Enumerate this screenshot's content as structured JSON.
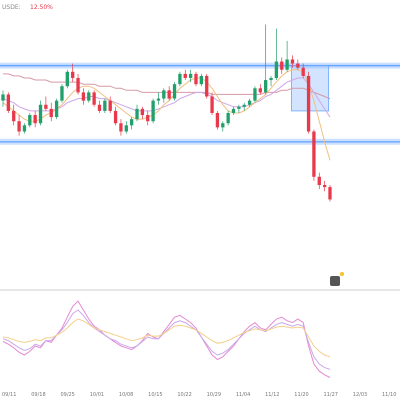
{
  "header": {
    "symbol_fragment": "USDE:",
    "change_text": "12.50%"
  },
  "colors": {
    "up": "#22a06b",
    "down": "#e8394a",
    "channel": "#6aa6ff",
    "box": "#9cc4ff",
    "ma_long": "#d59aa6",
    "ma_mid": "#cfa7e8",
    "ma_short": "#f0c080",
    "osc_1": "#e58ad1",
    "osc_2": "#c9a8ee",
    "osc_3": "#f3d08a",
    "tick_text": "#777777"
  },
  "chart_data": [
    {
      "type": "candlestick",
      "title": "",
      "x_tick_labels": [
        "09/11",
        "09/18",
        "09/25",
        "10/01",
        "10/08",
        "10/15",
        "10/22",
        "10/29",
        "11/04",
        "11/12",
        "11/20",
        "11/27",
        "12/03",
        "11/10"
      ],
      "candles": [
        {
          "o": 7.5,
          "h": 8.0,
          "l": 7.2,
          "c": 7.8
        },
        {
          "o": 7.8,
          "h": 7.9,
          "l": 6.9,
          "c": 7.0
        },
        {
          "o": 7.0,
          "h": 7.3,
          "l": 6.3,
          "c": 6.5
        },
        {
          "o": 6.5,
          "h": 6.8,
          "l": 5.8,
          "c": 6.0
        },
        {
          "o": 6.0,
          "h": 6.4,
          "l": 5.9,
          "c": 6.3
        },
        {
          "o": 6.3,
          "h": 6.9,
          "l": 6.2,
          "c": 6.8
        },
        {
          "o": 6.8,
          "h": 7.0,
          "l": 6.2,
          "c": 6.4
        },
        {
          "o": 6.4,
          "h": 7.5,
          "l": 6.3,
          "c": 7.3
        },
        {
          "o": 7.3,
          "h": 7.7,
          "l": 7.0,
          "c": 7.1
        },
        {
          "o": 7.1,
          "h": 7.4,
          "l": 6.5,
          "c": 6.7
        },
        {
          "o": 6.7,
          "h": 7.6,
          "l": 6.6,
          "c": 7.5
        },
        {
          "o": 7.5,
          "h": 8.3,
          "l": 7.4,
          "c": 8.2
        },
        {
          "o": 8.2,
          "h": 9.0,
          "l": 8.1,
          "c": 8.9
        },
        {
          "o": 8.9,
          "h": 9.3,
          "l": 8.4,
          "c": 8.6
        },
        {
          "o": 8.6,
          "h": 8.8,
          "l": 7.8,
          "c": 7.9
        },
        {
          "o": 7.9,
          "h": 8.1,
          "l": 7.3,
          "c": 7.5
        },
        {
          "o": 7.5,
          "h": 8.0,
          "l": 7.4,
          "c": 7.9
        },
        {
          "o": 7.9,
          "h": 8.0,
          "l": 7.2,
          "c": 7.3
        },
        {
          "o": 7.3,
          "h": 7.5,
          "l": 6.9,
          "c": 7.0
        },
        {
          "o": 7.0,
          "h": 7.6,
          "l": 6.9,
          "c": 7.5
        },
        {
          "o": 7.5,
          "h": 7.7,
          "l": 6.9,
          "c": 7.0
        },
        {
          "o": 7.0,
          "h": 7.2,
          "l": 6.3,
          "c": 6.4
        },
        {
          "o": 6.4,
          "h": 6.6,
          "l": 5.8,
          "c": 6.0
        },
        {
          "o": 6.0,
          "h": 6.5,
          "l": 5.9,
          "c": 6.3
        },
        {
          "o": 6.3,
          "h": 6.7,
          "l": 6.1,
          "c": 6.6
        },
        {
          "o": 6.6,
          "h": 7.3,
          "l": 6.5,
          "c": 7.1
        },
        {
          "o": 7.1,
          "h": 7.2,
          "l": 6.6,
          "c": 6.8
        },
        {
          "o": 6.8,
          "h": 7.0,
          "l": 6.3,
          "c": 6.5
        },
        {
          "o": 6.5,
          "h": 7.6,
          "l": 6.4,
          "c": 7.5
        },
        {
          "o": 7.5,
          "h": 7.9,
          "l": 7.3,
          "c": 7.6
        },
        {
          "o": 7.6,
          "h": 8.1,
          "l": 7.4,
          "c": 8.0
        },
        {
          "o": 8.0,
          "h": 8.2,
          "l": 7.5,
          "c": 7.6
        },
        {
          "o": 7.6,
          "h": 8.4,
          "l": 7.5,
          "c": 8.3
        },
        {
          "o": 8.3,
          "h": 8.9,
          "l": 8.2,
          "c": 8.8
        },
        {
          "o": 8.8,
          "h": 9.0,
          "l": 8.5,
          "c": 8.6
        },
        {
          "o": 8.6,
          "h": 9.0,
          "l": 8.4,
          "c": 8.8
        },
        {
          "o": 8.8,
          "h": 8.9,
          "l": 8.2,
          "c": 8.3
        },
        {
          "o": 8.3,
          "h": 8.8,
          "l": 8.2,
          "c": 8.7
        },
        {
          "o": 8.7,
          "h": 8.8,
          "l": 7.6,
          "c": 7.7
        },
        {
          "o": 7.7,
          "h": 7.9,
          "l": 6.8,
          "c": 6.9
        },
        {
          "o": 6.9,
          "h": 7.0,
          "l": 6.1,
          "c": 6.2
        },
        {
          "o": 6.2,
          "h": 6.5,
          "l": 6.0,
          "c": 6.4
        },
        {
          "o": 6.4,
          "h": 7.0,
          "l": 6.3,
          "c": 6.9
        },
        {
          "o": 6.9,
          "h": 7.2,
          "l": 6.8,
          "c": 7.1
        },
        {
          "o": 7.1,
          "h": 7.3,
          "l": 6.9,
          "c": 7.2
        },
        {
          "o": 7.2,
          "h": 7.4,
          "l": 7.0,
          "c": 7.3
        },
        {
          "o": 7.3,
          "h": 7.6,
          "l": 7.2,
          "c": 7.5
        },
        {
          "o": 7.5,
          "h": 8.2,
          "l": 7.4,
          "c": 8.1
        },
        {
          "o": 8.1,
          "h": 8.3,
          "l": 7.8,
          "c": 7.9
        },
        {
          "o": 7.9,
          "h": 11.2,
          "l": 7.8,
          "c": 8.5
        },
        {
          "o": 8.5,
          "h": 8.7,
          "l": 8.2,
          "c": 8.6
        },
        {
          "o": 8.6,
          "h": 11.0,
          "l": 8.5,
          "c": 9.4
        },
        {
          "o": 9.4,
          "h": 9.6,
          "l": 8.8,
          "c": 9.0
        },
        {
          "o": 9.0,
          "h": 10.4,
          "l": 8.9,
          "c": 9.5
        },
        {
          "o": 9.5,
          "h": 9.7,
          "l": 9.1,
          "c": 9.3
        },
        {
          "o": 9.3,
          "h": 9.5,
          "l": 9.0,
          "c": 9.1
        },
        {
          "o": 9.1,
          "h": 9.3,
          "l": 8.6,
          "c": 8.7
        },
        {
          "o": 8.7,
          "h": 8.9,
          "l": 5.9,
          "c": 6.0
        },
        {
          "o": 6.0,
          "h": 6.1,
          "l": 3.6,
          "c": 3.8
        },
        {
          "o": 3.8,
          "h": 4.0,
          "l": 3.2,
          "c": 3.4
        },
        {
          "o": 3.4,
          "h": 3.6,
          "l": 3.1,
          "c": 3.3
        },
        {
          "o": 3.3,
          "h": 3.4,
          "l": 2.6,
          "c": 2.7
        }
      ],
      "moving_averages": [
        {
          "role": "long",
          "values": [
            8.8,
            8.8,
            8.7,
            8.7,
            8.6,
            8.6,
            8.5,
            8.5,
            8.5,
            8.4,
            8.4,
            8.4,
            8.4,
            8.4,
            8.4,
            8.3,
            8.3,
            8.3,
            8.2,
            8.2,
            8.2,
            8.1,
            8.1,
            8.0,
            8.0,
            8.0,
            7.9,
            7.9,
            7.9,
            7.9,
            7.9,
            7.9,
            7.9,
            7.9,
            7.9,
            7.9,
            7.9,
            7.9,
            7.9,
            7.8,
            7.8,
            7.8,
            7.8,
            7.8,
            7.8,
            7.8,
            7.8,
            7.8,
            7.8,
            7.9,
            7.9,
            7.9,
            8.0,
            8.0,
            8.1,
            8.1,
            8.1,
            8.0,
            7.9,
            7.8,
            7.7,
            7.6
          ]
        },
        {
          "role": "mid",
          "values": [
            7.6,
            7.5,
            7.4,
            7.2,
            7.1,
            7.0,
            7.0,
            7.0,
            7.0,
            7.0,
            7.1,
            7.2,
            7.4,
            7.5,
            7.6,
            7.6,
            7.7,
            7.7,
            7.6,
            7.6,
            7.5,
            7.4,
            7.3,
            7.2,
            7.1,
            7.0,
            7.0,
            7.0,
            7.0,
            7.1,
            7.2,
            7.3,
            7.4,
            7.6,
            7.7,
            7.8,
            7.9,
            7.9,
            7.8,
            7.7,
            7.5,
            7.4,
            7.3,
            7.2,
            7.2,
            7.2,
            7.3,
            7.4,
            7.5,
            7.7,
            7.8,
            8.0,
            8.2,
            8.4,
            8.5,
            8.6,
            8.6,
            8.3,
            7.9,
            7.5,
            7.1,
            6.7
          ]
        },
        {
          "role": "short",
          "values": [
            7.4,
            7.2,
            7.0,
            6.8,
            6.6,
            6.5,
            6.5,
            6.6,
            6.8,
            6.9,
            7.1,
            7.3,
            7.6,
            7.9,
            8.1,
            8.2,
            8.2,
            8.1,
            7.9,
            7.7,
            7.5,
            7.3,
            7.1,
            6.9,
            6.7,
            6.6,
            6.6,
            6.7,
            6.8,
            7.0,
            7.3,
            7.5,
            7.8,
            8.1,
            8.3,
            8.5,
            8.6,
            8.6,
            8.4,
            8.1,
            7.7,
            7.3,
            7.0,
            6.9,
            6.9,
            7.0,
            7.2,
            7.4,
            7.6,
            7.8,
            8.1,
            8.4,
            8.7,
            8.9,
            9.0,
            9.0,
            8.9,
            8.3,
            7.5,
            6.5,
            5.5,
            4.6
          ]
        }
      ],
      "channel": {
        "upper": 9.2,
        "lower": 5.5
      },
      "ylim": [
        0,
        12
      ]
    },
    {
      "type": "line",
      "title": "",
      "series": [
        {
          "values": [
            45,
            42,
            38,
            33,
            30,
            34,
            40,
            38,
            46,
            44,
            52,
            60,
            72,
            84,
            90,
            80,
            70,
            62,
            58,
            52,
            48,
            44,
            40,
            38,
            36,
            40,
            46,
            54,
            50,
            48,
            56,
            64,
            72,
            74,
            70,
            66,
            60,
            50,
            40,
            30,
            25,
            28,
            34,
            40,
            48,
            56,
            62,
            66,
            60,
            58,
            64,
            70,
            72,
            68,
            66,
            70,
            66,
            40,
            20,
            12,
            8,
            5
          ]
        },
        {
          "values": [
            48,
            46,
            42,
            38,
            35,
            37,
            42,
            40,
            46,
            46,
            52,
            58,
            66,
            76,
            80,
            74,
            66,
            60,
            56,
            52,
            48,
            46,
            42,
            40,
            38,
            40,
            45,
            50,
            48,
            48,
            54,
            60,
            66,
            68,
            66,
            62,
            58,
            50,
            42,
            34,
            30,
            32,
            36,
            42,
            48,
            54,
            58,
            62,
            58,
            56,
            60,
            64,
            66,
            64,
            62,
            64,
            62,
            44,
            28,
            20,
            16,
            14
          ]
        },
        {
          "values": [
            50,
            49,
            47,
            45,
            44,
            45,
            47,
            46,
            49,
            49,
            52,
            55,
            60,
            66,
            70,
            68,
            64,
            60,
            58,
            56,
            54,
            52,
            50,
            48,
            46,
            47,
            49,
            52,
            51,
            51,
            54,
            58,
            62,
            63,
            62,
            60,
            58,
            54,
            50,
            46,
            43,
            44,
            46,
            49,
            52,
            55,
            57,
            59,
            58,
            57,
            59,
            61,
            62,
            61,
            60,
            61,
            60,
            50,
            40,
            34,
            30,
            28
          ]
        }
      ],
      "ylim": [
        0,
        100
      ]
    }
  ]
}
